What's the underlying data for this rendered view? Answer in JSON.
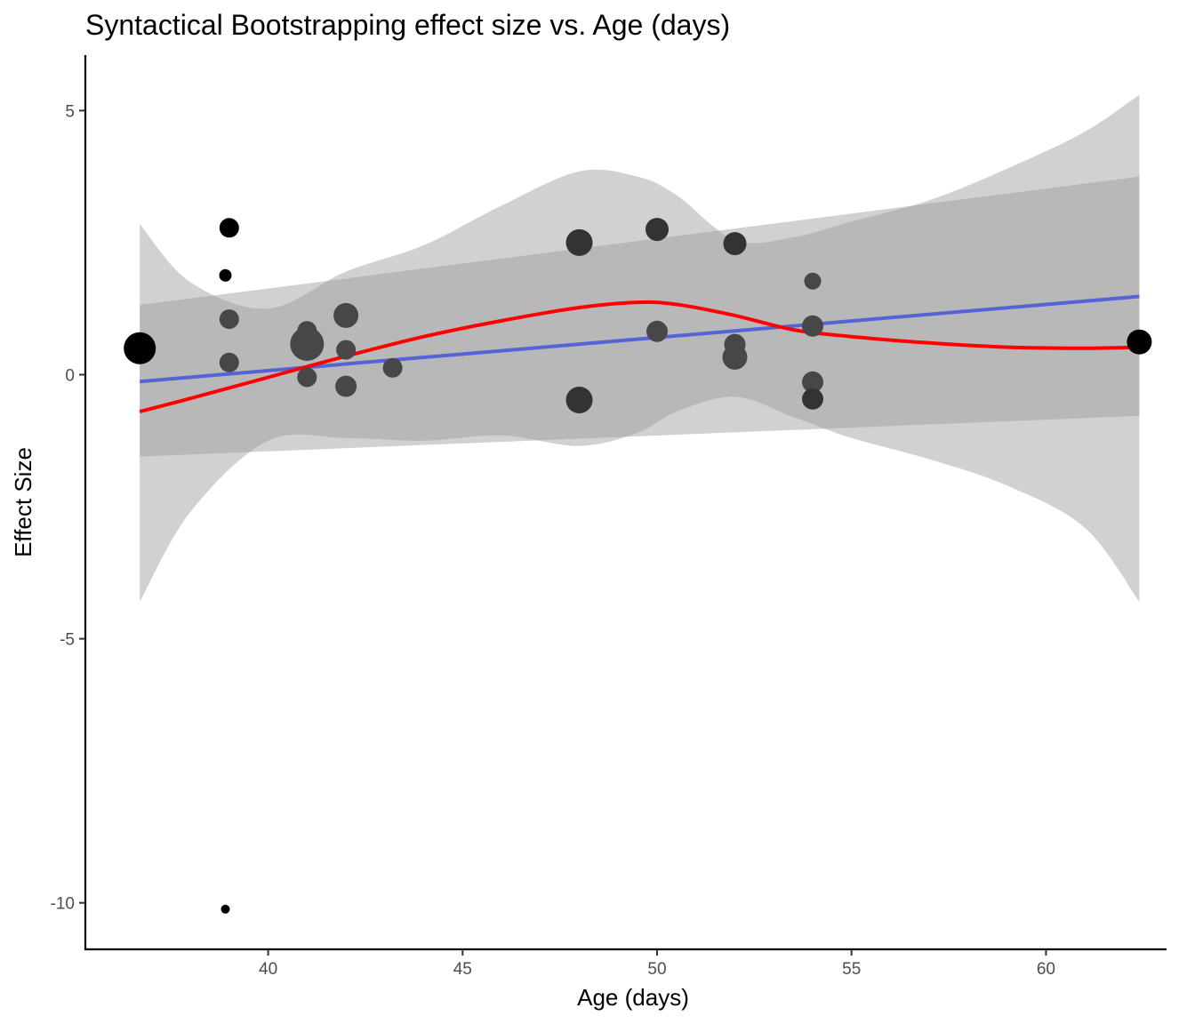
{
  "chart_data": {
    "type": "scatter",
    "title": "Syntactical Bootstrapping effect size vs. Age (days)",
    "xlabel": "Age (days)",
    "ylabel": "Effect Size",
    "xlim": [
      35.3,
      63.1
    ],
    "ylim": [
      -10.88,
      6.05
    ],
    "x_ticks": [
      40,
      45,
      50,
      55,
      60
    ],
    "y_ticks": [
      5,
      0,
      -5,
      -10
    ],
    "grid": false,
    "legend": "none",
    "points": [
      {
        "x": 36.7,
        "y": 0.5,
        "size": 36,
        "shade": "#000000"
      },
      {
        "x": 38.9,
        "y": 1.88,
        "size": 14,
        "shade": "#000000"
      },
      {
        "x": 38.9,
        "y": -10.12,
        "size": 10,
        "shade": "#000000"
      },
      {
        "x": 39.0,
        "y": 2.78,
        "size": 22,
        "shade": "#000000"
      },
      {
        "x": 39.0,
        "y": 1.05,
        "size": 22,
        "shade": "#474747"
      },
      {
        "x": 39.0,
        "y": 0.23,
        "size": 22,
        "shade": "#474747"
      },
      {
        "x": 41.0,
        "y": 0.83,
        "size": 22,
        "shade": "#474747"
      },
      {
        "x": 41.0,
        "y": 0.58,
        "size": 38,
        "shade": "#474747"
      },
      {
        "x": 41.0,
        "y": -0.05,
        "size": 22,
        "shade": "#474747"
      },
      {
        "x": 42.0,
        "y": 1.12,
        "size": 28,
        "shade": "#474747"
      },
      {
        "x": 42.0,
        "y": 0.47,
        "size": 22,
        "shade": "#474747"
      },
      {
        "x": 42.0,
        "y": -0.22,
        "size": 24,
        "shade": "#474747"
      },
      {
        "x": 43.2,
        "y": 0.13,
        "size": 22,
        "shade": "#474747"
      },
      {
        "x": 48.0,
        "y": 2.5,
        "size": 30,
        "shade": "#333333"
      },
      {
        "x": 48.0,
        "y": -0.48,
        "size": 30,
        "shade": "#333333"
      },
      {
        "x": 50.0,
        "y": 2.75,
        "size": 26,
        "shade": "#333333"
      },
      {
        "x": 50.0,
        "y": 0.82,
        "size": 24,
        "shade": "#474747"
      },
      {
        "x": 52.0,
        "y": 2.48,
        "size": 26,
        "shade": "#333333"
      },
      {
        "x": 52.0,
        "y": 0.57,
        "size": 24,
        "shade": "#474747"
      },
      {
        "x": 52.0,
        "y": 0.33,
        "size": 28,
        "shade": "#474747"
      },
      {
        "x": 54.0,
        "y": 1.77,
        "size": 19,
        "shade": "#474747"
      },
      {
        "x": 54.0,
        "y": 0.92,
        "size": 24,
        "shade": "#474747"
      },
      {
        "x": 54.0,
        "y": -0.14,
        "size": 24,
        "shade": "#474747"
      },
      {
        "x": 54.0,
        "y": -0.46,
        "size": 24,
        "shade": "#333333"
      },
      {
        "x": 62.4,
        "y": 0.62,
        "size": 28,
        "shade": "#000000"
      }
    ],
    "linear_fit": {
      "color": "#5563d6",
      "x": [
        36.7,
        62.4
      ],
      "y": [
        -0.13,
        1.48
      ],
      "ci_lower": [
        -1.55,
        -0.78
      ],
      "ci_upper": [
        1.32,
        3.75
      ]
    },
    "loess_fit": {
      "color": "#ff0000",
      "x": [
        36.7,
        38,
        40,
        42,
        44,
        46,
        48,
        49.5,
        50.5,
        52,
        53.5,
        55,
        57,
        59,
        61,
        62.4
      ],
      "y": [
        -0.7,
        -0.45,
        -0.05,
        0.35,
        0.72,
        1.02,
        1.27,
        1.37,
        1.33,
        1.12,
        0.85,
        0.72,
        0.6,
        0.52,
        0.5,
        0.52
      ],
      "ci_lower": [
        -4.3,
        -2.6,
        -1.25,
        -1.2,
        -1.25,
        -1.15,
        -1.35,
        -1.1,
        -0.7,
        -0.42,
        -0.8,
        -1.2,
        -1.6,
        -2.1,
        -2.9,
        -4.3
      ],
      "ci_upper": [
        2.85,
        1.75,
        1.25,
        1.95,
        2.45,
        3.2,
        3.85,
        3.75,
        3.4,
        2.55,
        2.6,
        2.9,
        3.3,
        3.9,
        4.6,
        5.3
      ]
    },
    "band_color": "#999999"
  }
}
